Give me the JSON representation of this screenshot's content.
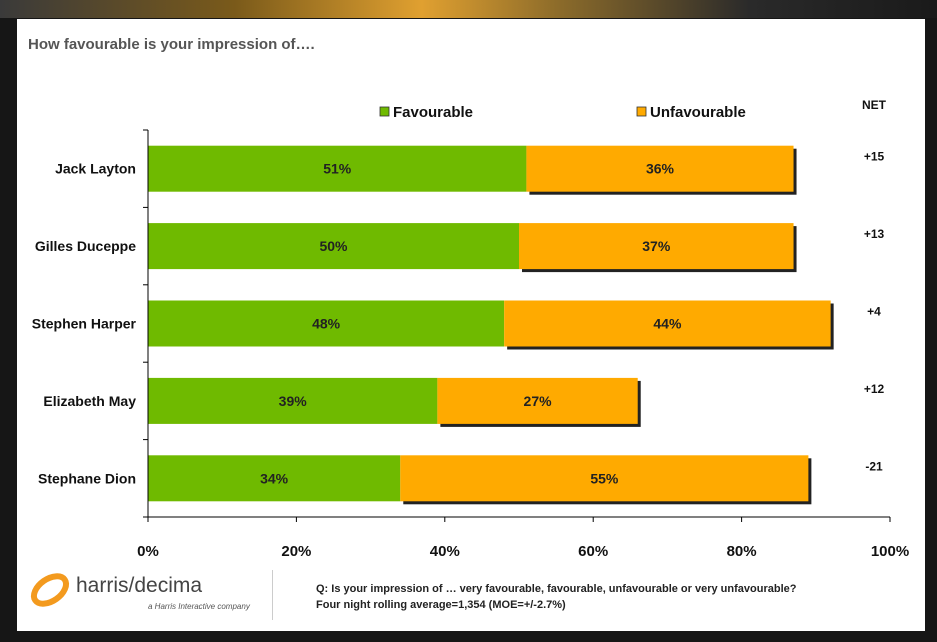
{
  "headline": "How favourable is your impression of….",
  "net_header": "NET",
  "colors": {
    "favourable": "#6fba00",
    "unfavourable": "#ffaa00"
  },
  "chart_data": {
    "type": "bar",
    "orientation": "horizontal",
    "stacked": true,
    "categories": [
      "Jack Layton",
      "Gilles Duceppe",
      "Stephen Harper",
      "Elizabeth May",
      "Stephane Dion"
    ],
    "series": [
      {
        "name": "Favourable",
        "values": [
          51,
          50,
          48,
          39,
          34
        ]
      },
      {
        "name": "Unfavourable",
        "values": [
          36,
          37,
          44,
          27,
          55
        ]
      }
    ],
    "value_labels": {
      "Favourable": [
        "51%",
        "50%",
        "48%",
        "39%",
        "34%"
      ],
      "Unfavourable": [
        "36%",
        "37%",
        "44%",
        "27%",
        "55%"
      ]
    },
    "net": [
      "+15",
      "+13",
      "+4",
      "+12",
      "-21"
    ],
    "xlim": [
      0,
      100
    ],
    "xticks": [
      "0%",
      "20%",
      "40%",
      "60%",
      "80%",
      "100%"
    ],
    "legend": "top",
    "grid": false
  },
  "footer": {
    "logo_text": "harris/decima",
    "logo_tagline": "a Harris Interactive company",
    "question": "Q: Is your impression of … very favourable, favourable, unfavourable or very unfavourable?",
    "note": "Four night rolling average=1,354 (MOE=+/-2.7%)"
  }
}
